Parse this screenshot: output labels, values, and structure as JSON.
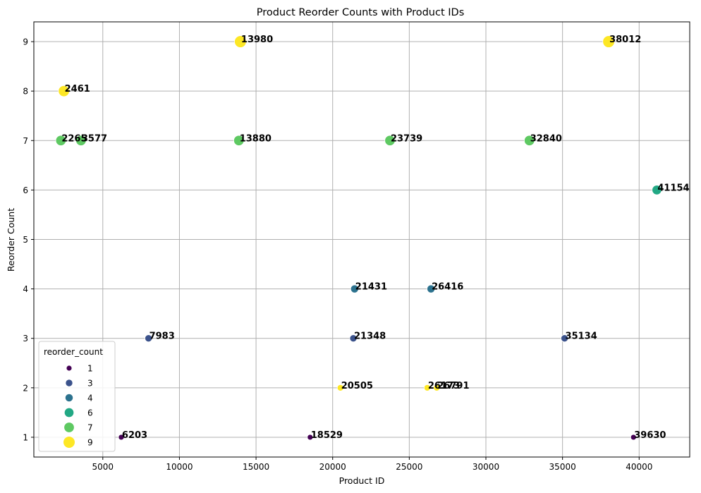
{
  "chart_data": {
    "type": "scatter",
    "title": "Product Reorder Counts with Product IDs",
    "xlabel": "Product ID",
    "ylabel": "Reorder Count",
    "xlim": [
      500,
      43300
    ],
    "ylim": [
      0.6,
      9.4
    ],
    "xticks": [
      5000,
      10000,
      15000,
      20000,
      25000,
      30000,
      35000,
      40000
    ],
    "yticks": [
      1,
      2,
      3,
      4,
      5,
      6,
      7,
      8,
      9
    ],
    "grid": true,
    "legend": {
      "title": "reorder_count",
      "placement": "lower-left",
      "entries": [
        {
          "label": "1",
          "value": 1,
          "color": "#440154"
        },
        {
          "label": "3",
          "value": 3,
          "color": "#3b528b"
        },
        {
          "label": "4",
          "value": 4,
          "color": "#2c728e"
        },
        {
          "label": "6",
          "value": 6,
          "color": "#22a884"
        },
        {
          "label": "7",
          "value": 7,
          "color": "#5ec962"
        },
        {
          "label": "9",
          "value": 9,
          "color": "#fde725"
        }
      ]
    },
    "points": [
      {
        "x": 13980,
        "y": 9,
        "label": "13980"
      },
      {
        "x": 38012,
        "y": 9,
        "label": "38012"
      },
      {
        "x": 2461,
        "y": 8,
        "label": "2461"
      },
      {
        "x": 2265,
        "y": 7,
        "label": "2265"
      },
      {
        "x": 3577,
        "y": 7,
        "label": "3577"
      },
      {
        "x": 13880,
        "y": 7,
        "label": "13880"
      },
      {
        "x": 23739,
        "y": 7,
        "label": "23739"
      },
      {
        "x": 32840,
        "y": 7,
        "label": "32840"
      },
      {
        "x": 41154,
        "y": 6,
        "label": "41154"
      },
      {
        "x": 21431,
        "y": 4,
        "label": "21431"
      },
      {
        "x": 26416,
        "y": 4,
        "label": "26416"
      },
      {
        "x": 7983,
        "y": 3,
        "label": "7983"
      },
      {
        "x": 21348,
        "y": 3,
        "label": "21348"
      },
      {
        "x": 35134,
        "y": 3,
        "label": "35134"
      },
      {
        "x": 20505,
        "y": 2,
        "label": "20505"
      },
      {
        "x": 26173,
        "y": 2,
        "label": "26173"
      },
      {
        "x": 26791,
        "y": 2,
        "label": "26791"
      },
      {
        "x": 6203,
        "y": 1,
        "label": "6203"
      },
      {
        "x": 18529,
        "y": 1,
        "label": "18529"
      },
      {
        "x": 39630,
        "y": 1,
        "label": "39630"
      }
    ]
  }
}
